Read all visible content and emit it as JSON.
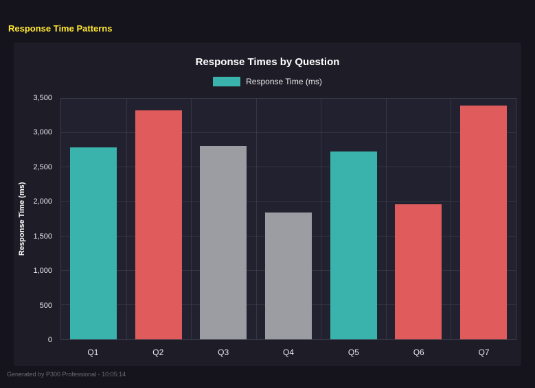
{
  "page": {
    "title": "Response Time Patterns",
    "footer": "Generated by P300 Professional - 10:05:14"
  },
  "colors": {
    "background": "#15141c",
    "panel": "#1e1d27",
    "accent_yellow": "#ffe633",
    "teal": "#39b3ab",
    "red": "#e05c5c",
    "gray": "#9c9ca3"
  },
  "chart_data": {
    "type": "bar",
    "title": "Response Times by Question",
    "legend_label": "Response Time (ms)",
    "legend_color": "#39b3ab",
    "legend_position": "top",
    "xlabel": "",
    "ylabel": "Response Time (ms)",
    "categories": [
      "Q1",
      "Q2",
      "Q3",
      "Q4",
      "Q5",
      "Q6",
      "Q7"
    ],
    "values": [
      2790,
      3330,
      2810,
      1840,
      2730,
      1960,
      3400
    ],
    "bar_colors": [
      "#39b3ab",
      "#e05c5c",
      "#9c9ca3",
      "#9c9ca3",
      "#39b3ab",
      "#e05c5c",
      "#e05c5c"
    ],
    "ylim": [
      0,
      3500
    ],
    "yticks": [
      0,
      500,
      1000,
      1500,
      2000,
      2500,
      3000,
      3500
    ],
    "ytick_labels": [
      "0",
      "500",
      "1,000",
      "1,500",
      "2,000",
      "2,500",
      "3,000",
      "3,500"
    ],
    "grid": true
  }
}
